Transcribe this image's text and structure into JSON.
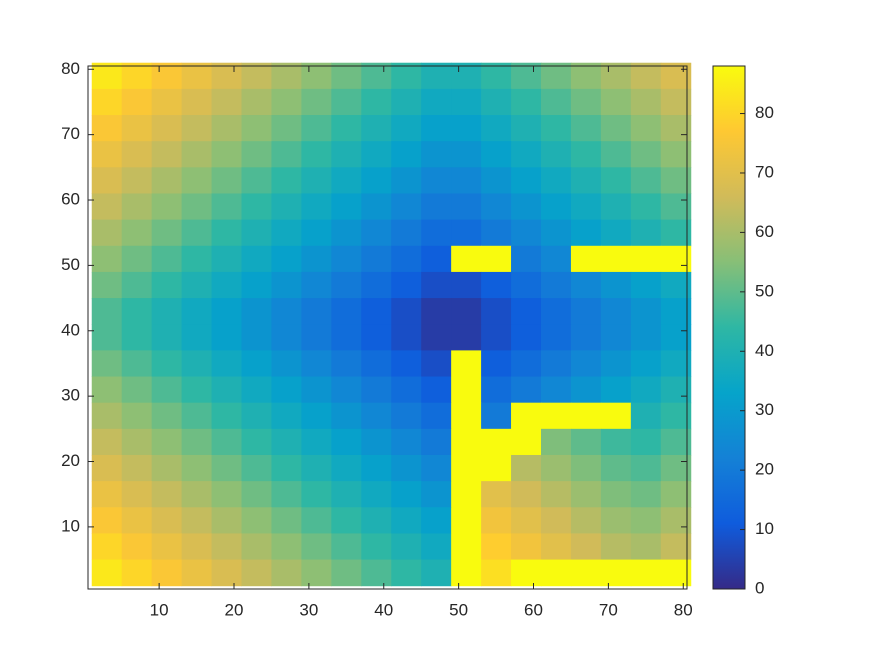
{
  "chart_data": {
    "type": "heatmap",
    "x": [
      3,
      7,
      11,
      15,
      19,
      23,
      27,
      31,
      35,
      39,
      43,
      47,
      51,
      55,
      59,
      63,
      67,
      71,
      75,
      79
    ],
    "y": [
      79,
      75,
      71,
      67,
      63,
      59,
      55,
      51,
      47,
      43,
      39,
      35,
      31,
      27,
      23,
      19,
      15,
      11,
      7,
      3
    ],
    "z": [
      [
        84,
        80,
        76,
        72,
        68,
        64,
        60,
        56,
        52,
        48,
        44,
        40,
        40,
        44,
        48,
        52,
        56,
        60,
        64,
        68
      ],
      [
        80,
        76,
        72,
        68,
        64,
        60,
        56,
        52,
        48,
        44,
        40,
        36,
        36,
        40,
        44,
        48,
        52,
        56,
        60,
        64
      ],
      [
        76,
        72,
        68,
        64,
        60,
        56,
        52,
        48,
        44,
        40,
        36,
        32,
        32,
        36,
        40,
        44,
        48,
        52,
        56,
        60
      ],
      [
        72,
        68,
        64,
        60,
        56,
        52,
        48,
        44,
        40,
        36,
        32,
        28,
        28,
        32,
        36,
        40,
        44,
        48,
        52,
        56
      ],
      [
        68,
        64,
        60,
        56,
        52,
        48,
        44,
        40,
        36,
        32,
        28,
        24,
        24,
        28,
        32,
        36,
        40,
        44,
        48,
        52
      ],
      [
        64,
        60,
        56,
        52,
        48,
        44,
        40,
        36,
        32,
        28,
        24,
        20,
        20,
        24,
        28,
        32,
        36,
        40,
        44,
        48
      ],
      [
        60,
        56,
        52,
        48,
        44,
        40,
        36,
        32,
        28,
        24,
        20,
        16,
        16,
        20,
        24,
        28,
        32,
        36,
        40,
        44
      ],
      [
        56,
        52,
        48,
        44,
        40,
        36,
        32,
        28,
        24,
        20,
        16,
        12,
        88,
        88,
        20,
        24,
        88,
        88,
        88,
        88
      ],
      [
        52,
        48,
        44,
        40,
        36,
        32,
        28,
        24,
        20,
        16,
        12,
        8,
        8,
        12,
        16,
        20,
        24,
        28,
        32,
        36
      ],
      [
        48,
        44,
        40,
        36,
        32,
        28,
        24,
        20,
        16,
        12,
        8,
        4,
        4,
        8,
        12,
        16,
        20,
        24,
        28,
        32
      ],
      [
        48,
        44,
        40,
        36,
        32,
        28,
        24,
        20,
        16,
        12,
        8,
        4,
        4,
        8,
        12,
        16,
        20,
        24,
        28,
        32
      ],
      [
        52,
        48,
        44,
        40,
        36,
        32,
        28,
        24,
        20,
        16,
        12,
        8,
        88,
        12,
        16,
        20,
        24,
        28,
        32,
        36
      ],
      [
        56,
        52,
        48,
        44,
        40,
        36,
        32,
        28,
        24,
        20,
        16,
        12,
        88,
        16,
        20,
        24,
        28,
        32,
        36,
        40
      ],
      [
        60,
        56,
        52,
        48,
        44,
        40,
        36,
        32,
        28,
        24,
        20,
        16,
        88,
        20,
        88,
        88,
        88,
        88,
        40,
        44
      ],
      [
        64,
        60,
        56,
        52,
        48,
        44,
        40,
        36,
        32,
        28,
        24,
        20,
        88,
        88,
        88,
        54,
        50,
        46,
        44,
        48
      ],
      [
        68,
        64,
        60,
        56,
        52,
        48,
        44,
        40,
        36,
        32,
        28,
        24,
        88,
        88,
        62,
        58,
        54,
        50,
        48,
        52
      ],
      [
        72,
        68,
        64,
        60,
        56,
        52,
        48,
        44,
        40,
        36,
        32,
        28,
        88,
        70,
        66,
        62,
        58,
        54,
        52,
        56
      ],
      [
        76,
        72,
        68,
        64,
        60,
        56,
        52,
        48,
        44,
        40,
        36,
        32,
        88,
        74,
        70,
        66,
        62,
        58,
        56,
        60
      ],
      [
        80,
        76,
        72,
        68,
        64,
        60,
        56,
        52,
        48,
        44,
        40,
        36,
        88,
        78,
        74,
        70,
        66,
        62,
        60,
        64
      ],
      [
        84,
        80,
        76,
        72,
        68,
        64,
        60,
        56,
        52,
        48,
        44,
        40,
        88,
        82,
        88,
        88,
        88,
        88,
        88,
        88
      ]
    ],
    "xlim": [
      0.5,
      80.5
    ],
    "ylim": [
      0.5,
      80.5
    ],
    "xticks": [
      10,
      20,
      30,
      40,
      50,
      60,
      70,
      80
    ],
    "yticks": [
      10,
      20,
      30,
      40,
      50,
      60,
      70,
      80
    ],
    "clim": [
      0,
      88
    ],
    "cticks": [
      0,
      10,
      20,
      30,
      40,
      50,
      60,
      70,
      80
    ],
    "colormap": [
      "#352a87",
      "#0f5cdd",
      "#1481d6",
      "#06a4ca",
      "#2eb7a4",
      "#87bf77",
      "#d1bb59",
      "#fec832",
      "#f9fb0e"
    ]
  }
}
